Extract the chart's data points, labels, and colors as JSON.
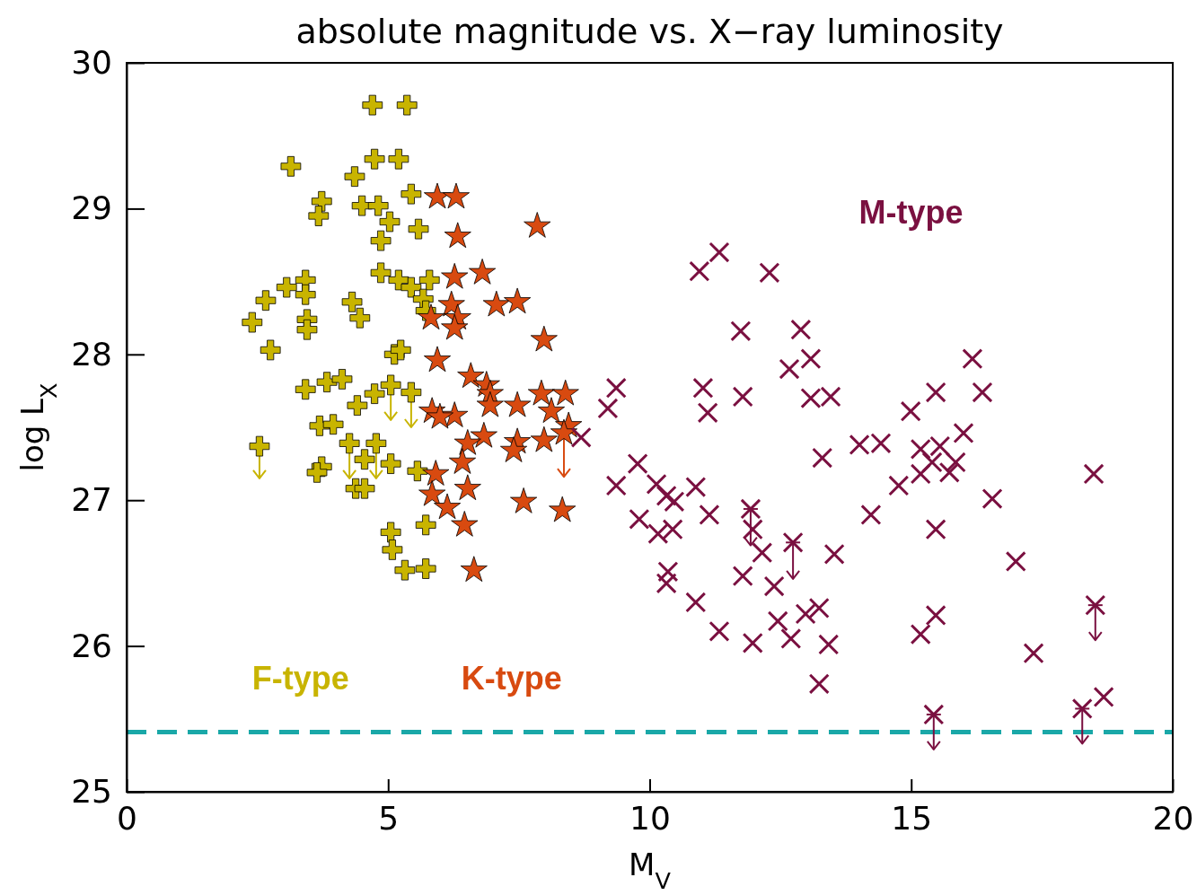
{
  "chart_data": {
    "type": "scatter",
    "title": "absolute magnitude vs. X−ray luminosity",
    "xlabel": "M$_{V}$",
    "ylabel": "log L$_{X}$",
    "xlim": [
      0,
      20
    ],
    "ylim": [
      25,
      30
    ],
    "xticks": [
      0,
      5,
      10,
      15,
      20
    ],
    "yticks": [
      25,
      26,
      27,
      28,
      29,
      30
    ],
    "grid": false,
    "legend": false,
    "ref_lines": [
      {
        "axis": "y",
        "value": 25.41,
        "color": "#1aa8a8",
        "line_style": "dashed"
      }
    ],
    "series": [
      {
        "name": "F-type",
        "color": "#c8b400",
        "marker": "cross",
        "x": [
          4.7,
          5.36,
          3.14,
          4.74,
          5.2,
          4.36,
          3.73,
          3.67,
          4.5,
          4.81,
          5.44,
          5.03,
          5.58,
          4.86,
          4.86,
          5.2,
          5.44,
          5.79,
          3.06,
          3.42,
          3.42,
          2.66,
          5.67,
          5.72,
          2.4,
          3.45,
          3.45,
          4.31,
          4.46,
          2.75,
          5.12,
          5.24,
          3.42,
          3.83,
          4.12,
          4.74,
          5.05,
          5.44,
          4.41,
          3.69,
          3.95,
          2.54,
          4.26,
          4.77,
          4.55,
          5.05,
          3.73,
          3.64,
          4.38,
          4.55,
          5.56,
          5.72,
          5.05,
          5.08,
          5.32,
          5.72
        ],
        "values": [
          29.71,
          29.71,
          29.29,
          29.34,
          29.34,
          29.22,
          29.05,
          28.95,
          29.02,
          29.02,
          29.1,
          28.91,
          28.86,
          28.78,
          28.56,
          28.51,
          28.46,
          28.51,
          28.46,
          28.51,
          28.41,
          28.37,
          28.38,
          28.3,
          28.22,
          28.24,
          28.17,
          28.36,
          28.25,
          28.03,
          28.0,
          28.03,
          27.76,
          27.81,
          27.83,
          27.73,
          27.79,
          27.74,
          27.65,
          27.51,
          27.52,
          27.37,
          27.39,
          27.39,
          27.28,
          27.25,
          27.23,
          27.19,
          27.08,
          27.08,
          27.2,
          26.83,
          26.78,
          26.66,
          26.52,
          26.53
        ],
        "errors": [
          null,
          null,
          null,
          null,
          null,
          null,
          null,
          null,
          null,
          null,
          null,
          null,
          null,
          null,
          null,
          null,
          null,
          null,
          null,
          null,
          null,
          null,
          null,
          null,
          null,
          null,
          null,
          null,
          null,
          null,
          null,
          null,
          null,
          null,
          null,
          null,
          [
            27.55,
            27.79
          ],
          [
            27.5,
            27.74
          ],
          null,
          null,
          null,
          [
            27.15,
            27.37
          ],
          [
            27.15,
            27.39
          ],
          [
            27.15,
            27.39
          ],
          null,
          null,
          null,
          null,
          null,
          null,
          null,
          null,
          null,
          null,
          null,
          null
        ]
      },
      {
        "name": "K-type",
        "color": "#d84a10",
        "marker": "star",
        "x": [
          5.94,
          6.3,
          6.33,
          7.85,
          6.27,
          6.8,
          7.07,
          7.47,
          6.21,
          5.82,
          6.33,
          6.27,
          7.98,
          5.94,
          6.58,
          6.88,
          6.95,
          6.95,
          7.47,
          7.93,
          8.39,
          5.84,
          6.27,
          5.99,
          8.12,
          8.45,
          6.83,
          6.52,
          7.47,
          7.4,
          7.98,
          8.36,
          6.42,
          5.91,
          6.52,
          5.84,
          6.13,
          6.46,
          7.59,
          8.33,
          6.64
        ],
        "values": [
          29.08,
          29.08,
          28.81,
          28.88,
          28.53,
          28.56,
          28.34,
          28.36,
          28.34,
          28.25,
          28.25,
          28.18,
          28.1,
          27.96,
          27.85,
          27.79,
          27.73,
          27.65,
          27.65,
          27.73,
          27.73,
          27.61,
          27.58,
          27.57,
          27.61,
          27.51,
          27.44,
          27.39,
          27.4,
          27.34,
          27.41,
          27.46,
          27.26,
          27.18,
          27.08,
          27.04,
          26.95,
          26.83,
          26.99,
          26.93,
          26.52
        ],
        "errors": [
          null,
          null,
          null,
          null,
          null,
          null,
          null,
          null,
          null,
          null,
          null,
          null,
          null,
          null,
          null,
          null,
          null,
          null,
          null,
          null,
          null,
          null,
          null,
          null,
          null,
          null,
          null,
          null,
          null,
          null,
          null,
          [
            27.16,
            27.46
          ],
          null,
          null,
          null,
          null,
          null,
          null,
          null,
          null,
          null
        ]
      },
      {
        "name": "M-type",
        "color": "#7a1040",
        "x": [
          11.33,
          10.95,
          12.29,
          11.74,
          12.89,
          13.08,
          12.67,
          13.08,
          13.46,
          16.17,
          16.36,
          15.47,
          14.99,
          11.02,
          11.11,
          11.78,
          9.36,
          9.2,
          16.0,
          14.01,
          14.42,
          15.18,
          15.55,
          15.4,
          15.85,
          15.18,
          15.73,
          13.3,
          14.76,
          18.49,
          16.55,
          9.77,
          9.36,
          10.13,
          10.32,
          10.47,
          10.88,
          9.8,
          10.16,
          10.44,
          11.14,
          11.93,
          11.97,
          12.15,
          14.23,
          15.47,
          13.53,
          17.0,
          12.74,
          11.78,
          10.35,
          10.32,
          10.88,
          11.33,
          11.97,
          12.45,
          12.7,
          12.98,
          13.24,
          13.42,
          13.24,
          12.38,
          15.47,
          15.18,
          17.34,
          18.68,
          15.43,
          18.27,
          18.52,
          8.69
        ],
        "values": [
          28.7,
          28.57,
          28.56,
          28.16,
          28.17,
          27.97,
          27.9,
          27.7,
          27.71,
          27.97,
          27.74,
          27.74,
          27.61,
          27.77,
          27.6,
          27.71,
          27.77,
          27.63,
          27.46,
          27.38,
          27.39,
          27.35,
          27.37,
          27.26,
          27.26,
          27.18,
          27.19,
          27.29,
          27.1,
          27.18,
          27.01,
          27.25,
          27.1,
          27.11,
          27.03,
          26.99,
          27.09,
          26.87,
          26.77,
          26.8,
          26.9,
          26.94,
          26.8,
          26.64,
          26.9,
          26.8,
          26.63,
          26.58,
          26.71,
          26.48,
          26.51,
          26.43,
          26.3,
          26.1,
          26.02,
          26.17,
          26.05,
          26.22,
          26.26,
          26.01,
          25.74,
          26.41,
          26.21,
          26.08,
          25.95,
          25.65,
          25.53,
          25.57,
          26.28,
          27.43
        ],
        "errors": [
          null,
          null,
          null,
          null,
          null,
          null,
          null,
          null,
          null,
          null,
          null,
          null,
          null,
          null,
          null,
          null,
          null,
          null,
          null,
          null,
          null,
          null,
          null,
          null,
          null,
          null,
          null,
          null,
          null,
          null,
          null,
          null,
          null,
          null,
          null,
          null,
          null,
          null,
          null,
          null,
          null,
          [
            26.69,
            26.94
          ],
          null,
          null,
          null,
          null,
          null,
          null,
          [
            26.46,
            26.71
          ],
          null,
          null,
          null,
          null,
          null,
          null,
          null,
          null,
          null,
          null,
          null,
          null,
          null,
          null,
          null,
          null,
          null,
          [
            25.29,
            25.53
          ],
          [
            25.33,
            25.57
          ],
          [
            26.04,
            26.28
          ],
          null
        ]
      }
    ]
  }
}
